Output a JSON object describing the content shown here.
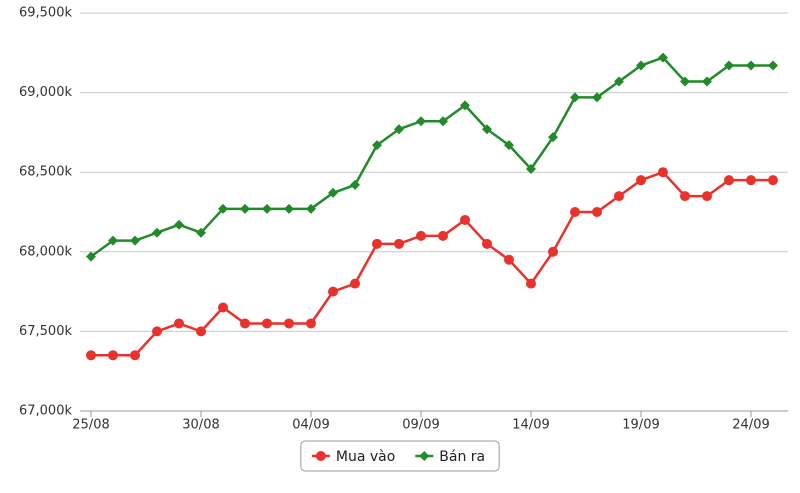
{
  "chart_data": {
    "type": "line",
    "categories": [
      "25/08",
      null,
      null,
      null,
      null,
      "30/08",
      null,
      null,
      null,
      null,
      "04/09",
      null,
      null,
      null,
      null,
      "09/09",
      null,
      null,
      null,
      null,
      "14/09",
      null,
      null,
      null,
      null,
      "19/09",
      null,
      null,
      null,
      null,
      "24/09",
      null
    ],
    "series": [
      {
        "name": "Mua vào",
        "color": "#e8322b",
        "marker": "circle",
        "values": [
          67350,
          67350,
          67350,
          67500,
          67550,
          67500,
          67650,
          67550,
          67550,
          67550,
          67550,
          67750,
          67800,
          68050,
          68050,
          68100,
          68100,
          68200,
          68050,
          67950,
          67800,
          68000,
          68250,
          68250,
          68350,
          68450,
          68500,
          68350,
          68350,
          68450,
          68450,
          68450
        ]
      },
      {
        "name": "Bán ra",
        "color": "#238a2b",
        "marker": "diamond",
        "values": [
          67970,
          68070,
          68070,
          68120,
          68170,
          68120,
          68270,
          68270,
          68270,
          68270,
          68270,
          68370,
          68420,
          68670,
          68770,
          68820,
          68820,
          68920,
          68770,
          68670,
          68520,
          68720,
          68970,
          68970,
          69070,
          69170,
          69220,
          69070,
          69070,
          69170,
          69170,
          69170
        ]
      }
    ],
    "ylim": [
      67000,
      69500
    ],
    "yticks": [
      {
        "value": 67000,
        "label": "67,000k"
      },
      {
        "value": 67500,
        "label": "67,500k"
      },
      {
        "value": 68000,
        "label": "68,000k"
      },
      {
        "value": 68500,
        "label": "68,500k"
      },
      {
        "value": 69000,
        "label": "69,000k"
      },
      {
        "value": 69500,
        "label": "69,500k"
      }
    ],
    "grid": true,
    "legend": "bottom"
  }
}
